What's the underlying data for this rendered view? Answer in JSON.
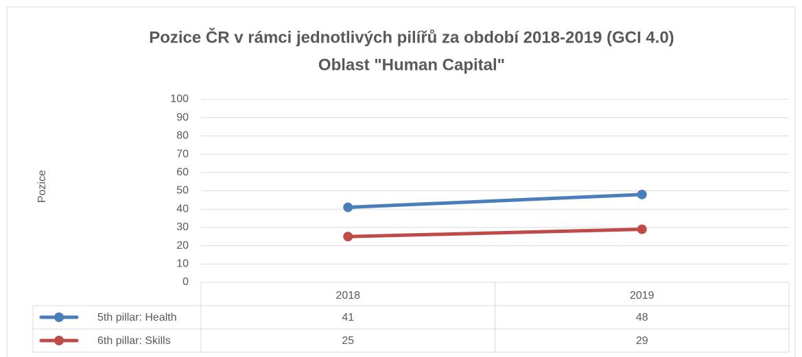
{
  "chart_data": {
    "type": "line",
    "title": "Pozice ČR v rámci jednotlivých pilířů za období 2018-2019 (GCI 4.0)",
    "subtitle": "Oblast \"Human Capital\"",
    "y_label": "Pozice",
    "categories": [
      "2018",
      "2019"
    ],
    "series": [
      {
        "name": "5th pillar: Health",
        "color": "#4a7ebb",
        "values": [
          41,
          48
        ]
      },
      {
        "name": "6th pillar: Skills",
        "color": "#be4b48",
        "values": [
          25,
          29
        ]
      }
    ],
    "ylim": [
      0,
      100
    ],
    "yticks": [
      0,
      10,
      20,
      30,
      40,
      50,
      60,
      70,
      80,
      90,
      100
    ],
    "grid": true
  }
}
